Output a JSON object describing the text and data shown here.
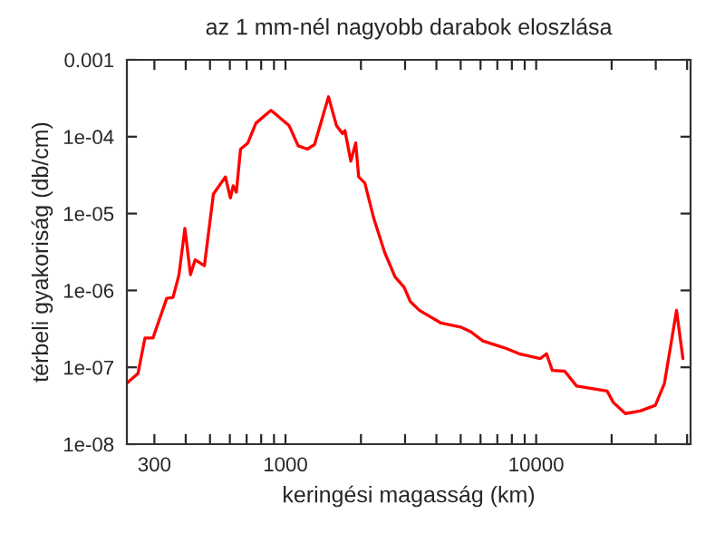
{
  "chart_data": {
    "type": "line",
    "title": "az 1 mm-nél nagyobb darabok eloszlása",
    "xlabel": "keringési magasság (km)",
    "ylabel": "térbeli gyakoriság (db/cm)",
    "log": "xy",
    "grid": false,
    "xlim": [
      233,
      41300
    ],
    "ylim": [
      1e-08,
      0.001
    ],
    "xticks": [
      300,
      {
        "value": 400,
        "label": null
      },
      {
        "value": 500,
        "label": null
      },
      {
        "value": 600,
        "label": null
      },
      {
        "value": 700,
        "label": null
      },
      {
        "value": 800,
        "label": null
      },
      {
        "value": 900,
        "label": null
      },
      1000,
      {
        "value": 2000,
        "label": null
      },
      {
        "value": 3000,
        "label": null
      },
      {
        "value": 4000,
        "label": null
      },
      {
        "value": 5000,
        "label": null
      },
      {
        "value": 6000,
        "label": null
      },
      {
        "value": 7000,
        "label": null
      },
      {
        "value": 8000,
        "label": null
      },
      {
        "value": 9000,
        "label": null
      },
      10000,
      {
        "value": 20000,
        "label": null
      },
      {
        "value": 30000,
        "label": null
      },
      {
        "value": 40000,
        "label": null
      }
    ],
    "yticks": [
      {
        "value": 1e-08,
        "label": "1e-08"
      },
      {
        "value": 1e-07,
        "label": "1e-07"
      },
      {
        "value": 1e-06,
        "label": "1e-06"
      },
      {
        "value": 1e-05,
        "label": "1e-05"
      },
      {
        "value": 0.0001,
        "label": "1e-04"
      },
      {
        "value": 0.001,
        "label": "0.001"
      }
    ],
    "series": [
      {
        "color": "#ff0000",
        "x": [
          233,
          258,
          275,
          296,
          336,
          356,
          376,
          397,
          418,
          436,
          475,
          516,
          576,
          603,
          619,
          637,
          662,
          708,
          762,
          875,
          925,
          1033,
          1124,
          1222,
          1306,
          1485,
          1597,
          1687,
          1727,
          1823,
          1906,
          1959,
          2073,
          2254,
          2490,
          2735,
          2973,
          3146,
          3422,
          4150,
          5044,
          5485,
          6132,
          7447,
          8565,
          10400,
          11000,
          11600,
          13000,
          14500,
          19200,
          20300,
          22700,
          26000,
          29900,
          32500,
          36300,
          38500
        ],
        "values": [
          6.2e-08,
          8.3e-08,
          2.4e-07,
          2.4e-07,
          7.9e-07,
          8.1e-07,
          1.6e-06,
          6.4e-06,
          1.6e-06,
          2.5e-06,
          2.1e-06,
          1.8e-05,
          3e-05,
          1.6e-05,
          2.3e-05,
          1.9e-05,
          6.9e-05,
          8.3e-05,
          0.00015,
          0.00022,
          0.00019,
          0.00014,
          7.6e-05,
          6.9e-05,
          7.9e-05,
          0.00033,
          0.00014,
          0.00011,
          0.00012,
          4.8e-05,
          8.3e-05,
          3e-05,
          2.5e-05,
          8.5e-06,
          3.1e-06,
          1.5e-06,
          1.1e-06,
          7.2e-07,
          5.5e-07,
          3.8e-07,
          3.3e-07,
          2.9e-07,
          2.2e-07,
          1.8e-07,
          1.5e-07,
          1.3e-07,
          1.5e-07,
          9.1e-08,
          8.9e-08,
          5.7e-08,
          4.9e-08,
          3.5e-08,
          2.5e-08,
          2.7e-08,
          3.2e-08,
          6.2e-08,
          5.5e-07,
          1.3e-07
        ]
      }
    ]
  }
}
